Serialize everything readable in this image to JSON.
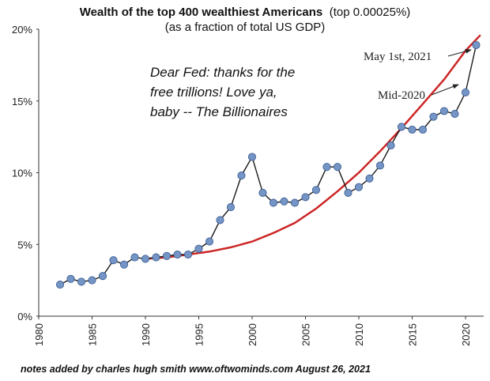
{
  "chart_data": {
    "type": "line",
    "title": "Wealth of the top 400 wealthiest Americans",
    "title_suffix": "(top 0.00025%)",
    "subtitle": "(as a fraction of total US GDP)",
    "xlabel": "",
    "ylabel": "",
    "xlim": [
      1980,
      2021.7
    ],
    "ylim": [
      0,
      20
    ],
    "grid": false,
    "legend": "none",
    "x_ticks": [
      "1980",
      "1985",
      "1990",
      "1995",
      "2000",
      "2005",
      "2010",
      "2015",
      "2020"
    ],
    "y_ticks": [
      "0%",
      "5%",
      "10%",
      "15%",
      "20%"
    ],
    "series": [
      {
        "color": "#1a1a1a",
        "marker_color": "#7595c7",
        "x": [
          1982,
          1983,
          1984,
          1985,
          1986,
          1987,
          1988,
          1989,
          1990,
          1991,
          1992,
          1993,
          1994,
          1995,
          1996,
          1997,
          1998,
          1999,
          2000,
          2001,
          2002,
          2003,
          2004,
          2005,
          2006,
          2007,
          2008,
          2009,
          2010,
          2011,
          2012,
          2013,
          2014,
          2015,
          2016,
          2017,
          2018,
          2019,
          2020,
          2021
        ],
        "y": [
          2.2,
          2.6,
          2.4,
          2.5,
          2.8,
          3.9,
          3.6,
          4.1,
          4.0,
          4.1,
          4.2,
          4.3,
          4.3,
          4.7,
          5.2,
          6.7,
          7.6,
          9.8,
          11.1,
          8.6,
          7.9,
          8.0,
          7.9,
          8.3,
          8.8,
          10.4,
          10.4,
          8.6,
          9.0,
          9.6,
          10.5,
          11.9,
          13.2,
          13.0,
          13.0,
          13.9,
          14.3,
          14.1,
          15.6,
          18.9
        ]
      },
      {
        "color": "#cc2626",
        "x": [
          1990,
          1992,
          1994,
          1996,
          1998,
          2000,
          2002,
          2004,
          2006,
          2008,
          2010,
          2012,
          2014,
          2016,
          2018,
          2020,
          2021.4
        ],
        "y": [
          4.0,
          4.1,
          4.3,
          4.5,
          4.8,
          5.2,
          5.8,
          6.5,
          7.5,
          8.7,
          10.0,
          11.5,
          13.1,
          14.8,
          16.5,
          18.5,
          19.6
        ]
      }
    ],
    "annotations": {
      "may_2021": "May 1st, 2021",
      "mid_2020": "Mid-2020",
      "fed_line1": "Dear Fed: thanks for the",
      "fed_line2": "free trillions! Love ya,",
      "fed_line3": "baby -- The Billionaires",
      "credit": "notes added by charles hugh smith   www.oftwominds.com   August 26, 2021"
    }
  }
}
